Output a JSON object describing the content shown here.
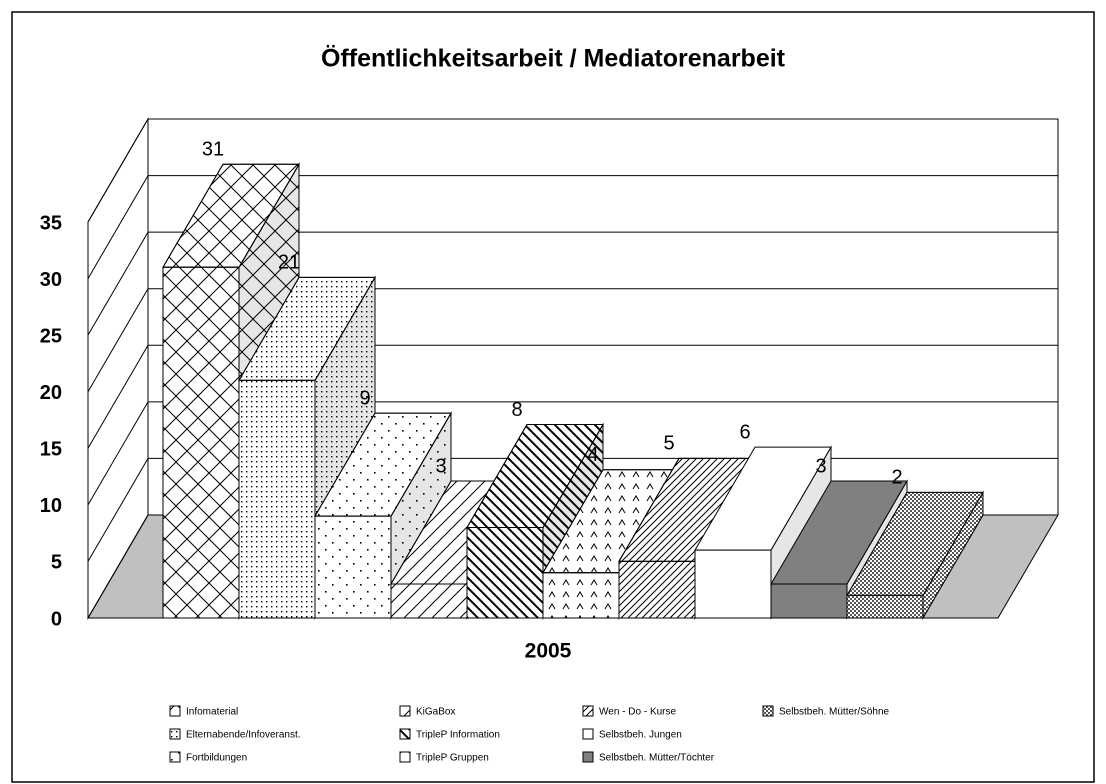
{
  "chart_data": {
    "type": "bar3d",
    "title": "Öffentlichkeitsarbeit / Mediatorenarbeit",
    "categories": [
      "2005"
    ],
    "ylim": [
      0,
      35
    ],
    "yticks": [
      0,
      5,
      10,
      15,
      20,
      25,
      30,
      35
    ],
    "grid": true,
    "series": [
      {
        "name": "Infomaterial",
        "color": "#ffffff",
        "pattern": "crosshatch",
        "values": [
          31
        ]
      },
      {
        "name": "Elternabende/Infoveranst.",
        "color": "#ffffff",
        "pattern": "densedots",
        "values": [
          21
        ]
      },
      {
        "name": "Fortbildungen",
        "color": "#ffffff",
        "pattern": "sparsedots",
        "values": [
          9
        ]
      },
      {
        "name": "KiGaBox",
        "color": "#ffffff",
        "pattern": "diagonal",
        "values": [
          3
        ]
      },
      {
        "name": "TripleP Information",
        "color": "#ffffff",
        "pattern": "thickdiagonal",
        "values": [
          8
        ]
      },
      {
        "name": "TripleP Gruppen",
        "color": "#ffffff",
        "pattern": "triangles",
        "values": [
          4
        ]
      },
      {
        "name": "Wen - Do - Kurse",
        "color": "#ffffff",
        "pattern": "finediagonal",
        "values": [
          5
        ]
      },
      {
        "name": "Selbstbeh. Jungen",
        "color": "#ffffff",
        "pattern": "none",
        "values": [
          6
        ]
      },
      {
        "name": "Selbstbeh. Mütter/Töchter",
        "color": "#808080",
        "pattern": "none",
        "values": [
          3
        ]
      },
      {
        "name": "Selbstbeh. Mütter/Söhne",
        "color": "#ffffff",
        "pattern": "checker",
        "values": [
          2
        ]
      }
    ]
  }
}
